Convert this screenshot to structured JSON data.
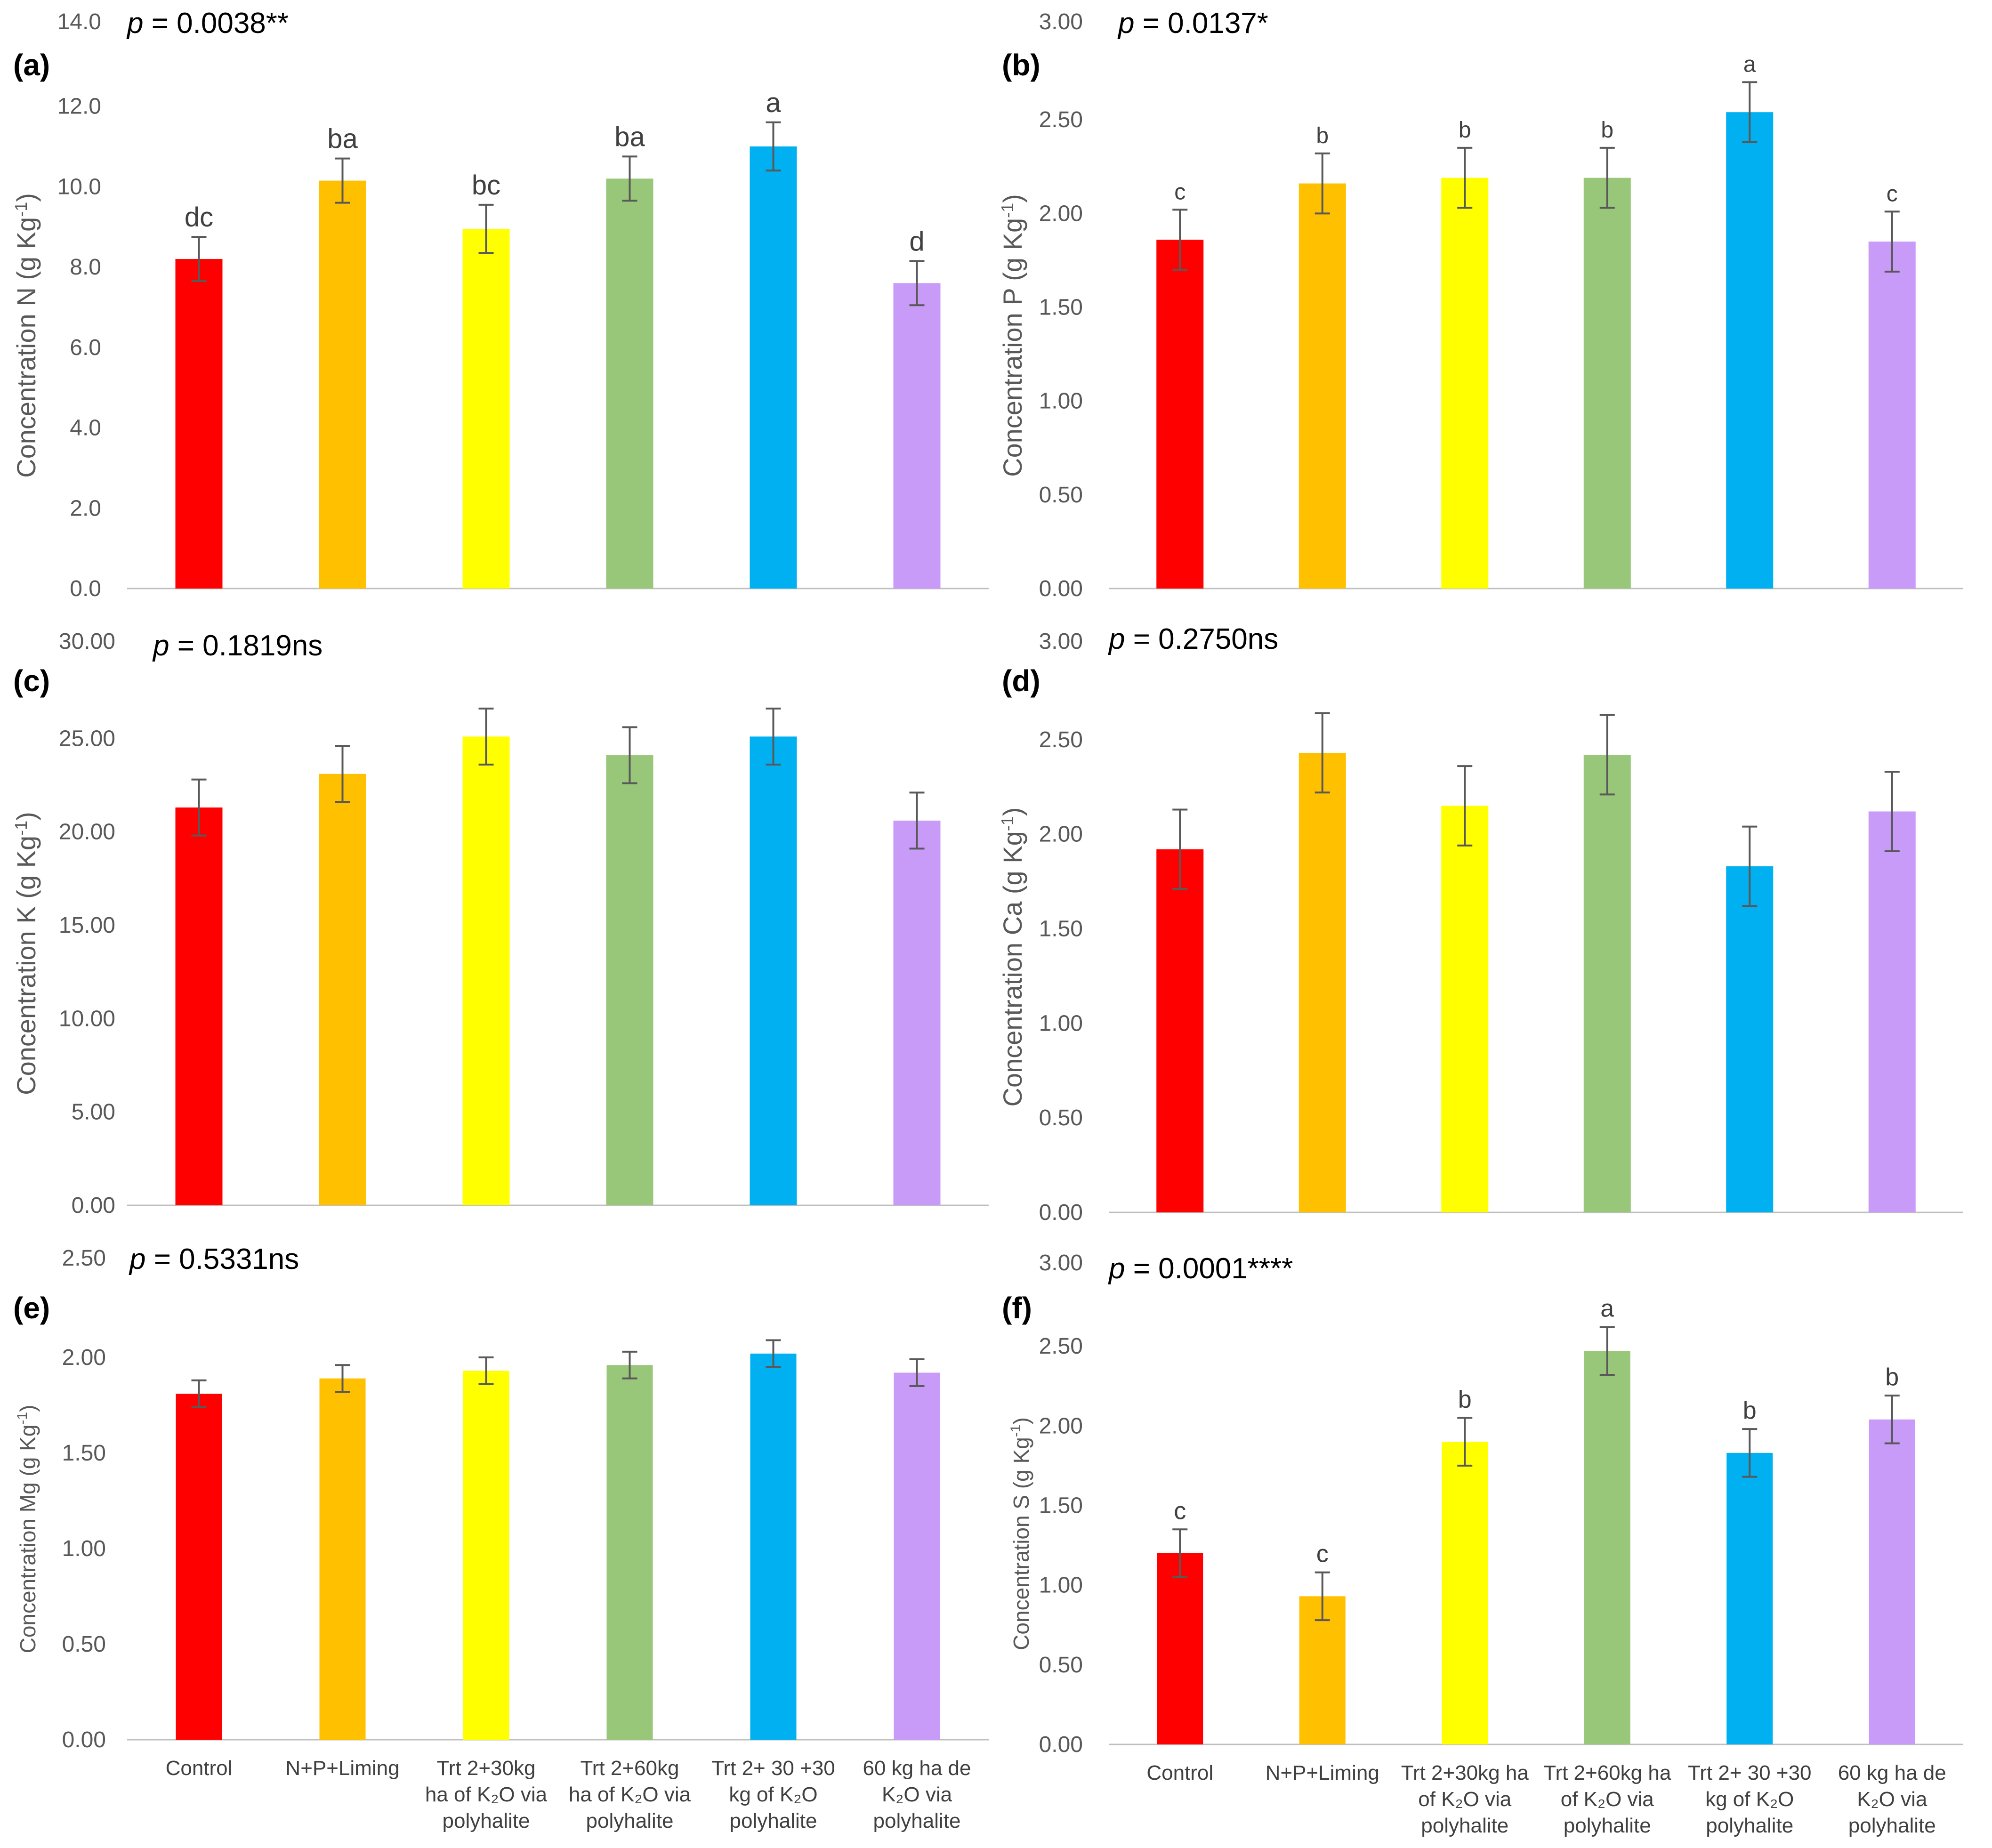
{
  "figure": {
    "colors": {
      "Control": "#ff0000",
      "N+P+Liming": "#ffc000",
      "Trt 2+30kg": "#ffff00",
      "Trt 2+60kg": "#98c77a",
      "Trt 2+ 30 +30": "#00b0f0",
      "60 kg": "#c89bf9"
    },
    "x_axis_labels_left": [
      [
        "Control"
      ],
      [
        "N+P+Liming"
      ],
      [
        "Trt 2+30kg",
        "ha of K₂O via",
        "polyhalite"
      ],
      [
        "Trt 2+60kg",
        "ha of K₂O via",
        "polyhalite"
      ],
      [
        "Trt 2+ 30 +30",
        "kg of K₂O",
        "polyhalite"
      ],
      [
        "60 kg ha de",
        "K₂O via",
        "polyhalite"
      ]
    ],
    "x_axis_labels_right": [
      [
        "Control"
      ],
      [
        "N+P+Liming"
      ],
      [
        "Trt 2+30kg ha",
        "of K₂O via",
        "polyhalite"
      ],
      [
        "Trt 2+60kg ha",
        "of K₂O via",
        "polyhalite"
      ],
      [
        "Trt 2+ 30 +30",
        "kg of K₂O",
        "polyhalite"
      ],
      [
        "60 kg ha de",
        "K₂O via",
        "polyhalite"
      ]
    ]
  },
  "chart_data": [
    {
      "panel": "(a)",
      "type": "bar",
      "p_prefix": "p",
      "p_value": " = 0.0038**",
      "ylabel_main": "Concentration N (g Kg",
      "ylabel_sup": "-1",
      "ylabel_end": ")",
      "ylim": [
        0,
        14
      ],
      "top_tick": "14.0",
      "ticks": [
        "0.0",
        "2.0",
        "4.0",
        "6.0",
        "8.0",
        "10.0",
        "12.0"
      ],
      "categories": [
        "Control",
        "N+P+Liming",
        "Trt 2+30kg ha of K₂O via polyhalite",
        "Trt 2+60kg ha of K₂O via polyhalite",
        "Trt 2+ 30 +30 kg of K₂O polyhalite",
        "60 kg ha de K₂O via polyhalite"
      ],
      "values": [
        8.2,
        10.15,
        8.95,
        10.2,
        11.0,
        7.6
      ],
      "errors": [
        0.55,
        0.55,
        0.6,
        0.55,
        0.6,
        0.55
      ],
      "letters": [
        "dc",
        "ba",
        "bc",
        "ba",
        "a",
        "d"
      ]
    },
    {
      "panel": "(b)",
      "type": "bar",
      "p_prefix": "p",
      "p_value": " = 0.0137*",
      "ylabel_main": "Concentration P (g Kg",
      "ylabel_sup": "-1",
      "ylabel_end": ")",
      "ylim": [
        0,
        3
      ],
      "top_tick": "3.00",
      "ticks": [
        "0.00",
        "0.50",
        "1.00",
        "1.50",
        "2.00",
        "2.50"
      ],
      "categories": [
        "Control",
        "N+P+Liming",
        "Trt 2+30kg ha of K₂O via polyhalite",
        "Trt 2+60kg ha of K₂O via polyhalite",
        "Trt 2+ 30 +30 kg of K₂O polyhalite",
        "60 kg ha de K₂O via polyhalite"
      ],
      "values": [
        1.86,
        2.16,
        2.19,
        2.19,
        2.54,
        1.85
      ],
      "errors": [
        0.16,
        0.16,
        0.16,
        0.16,
        0.16,
        0.16
      ],
      "letters": [
        "c",
        "b",
        "b",
        "b",
        "a",
        "c"
      ]
    },
    {
      "panel": "(c)",
      "type": "bar",
      "p_prefix": "p",
      "p_value": " = 0.1819ns",
      "ylabel_main": "Concentration K (g Kg",
      "ylabel_sup": "-1",
      "ylabel_end": ")",
      "ylim": [
        0,
        30
      ],
      "top_tick": "30.00",
      "ticks": [
        "0.00",
        "5.00",
        "10.00",
        "15.00",
        "20.00",
        "25.00"
      ],
      "categories": [
        "Control",
        "N+P+Liming",
        "Trt 2+30kg ha of K₂O via polyhalite",
        "Trt 2+60kg ha of K₂O via polyhalite",
        "Trt 2+ 30 +30 kg of K₂O polyhalite",
        "60 kg ha de K₂O via polyhalite"
      ],
      "values": [
        21.3,
        23.1,
        25.1,
        24.1,
        25.1,
        20.6
      ],
      "errors": [
        1.5,
        1.5,
        1.5,
        1.5,
        1.5,
        1.5
      ],
      "letters": []
    },
    {
      "panel": "(d)",
      "type": "bar",
      "p_prefix": "p",
      "p_value": " = 0.2750ns",
      "ylabel_main": "Concentration Ca (g Kg",
      "ylabel_sup": "-1",
      "ylabel_end": ")",
      "ylim": [
        0,
        3
      ],
      "top_tick": "3.00",
      "ticks": [
        "0.00",
        "0.50",
        "1.00",
        "1.50",
        "2.00",
        "2.50"
      ],
      "categories": [
        "Control",
        "N+P+Liming",
        "Trt 2+30kg ha of K₂O via polyhalite",
        "Trt 2+60kg ha of K₂O via polyhalite",
        "Trt 2+ 30 +30 kg of K₂O polyhalite",
        "60 kg ha de K₂O via polyhalite"
      ],
      "values": [
        1.92,
        2.43,
        2.15,
        2.42,
        1.83,
        2.12
      ],
      "errors": [
        0.21,
        0.21,
        0.21,
        0.21,
        0.21,
        0.21
      ],
      "letters": []
    },
    {
      "panel": "(e)",
      "type": "bar",
      "p_prefix": "p",
      "p_value": " = 0.5331ns",
      "ylabel_main": "Concentration Mg (g Kg",
      "ylabel_sup": "-1",
      "ylabel_end": ")",
      "ylim": [
        0,
        2.5
      ],
      "top_tick": "2.50",
      "ticks": [
        "0.00",
        "0.50",
        "1.00",
        "1.50",
        "2.00"
      ],
      "categories": [
        "Control",
        "N+P+Liming",
        "Trt 2+30kg ha of K₂O via polyhalite",
        "Trt 2+60kg ha of K₂O via polyhalite",
        "Trt 2+ 30 +30 kg of K₂O polyhalite",
        "60 kg ha de K₂O via polyhalite"
      ],
      "values": [
        1.81,
        1.89,
        1.93,
        1.96,
        2.02,
        1.92
      ],
      "errors": [
        0.07,
        0.07,
        0.07,
        0.07,
        0.07,
        0.07
      ],
      "letters": []
    },
    {
      "panel": "(f)",
      "type": "bar",
      "p_prefix": "p",
      "p_value": " = 0.0001****",
      "ylabel_main": "Concentration S (g Kg",
      "ylabel_sup": "-1",
      "ylabel_end": ")",
      "ylim": [
        0,
        3
      ],
      "top_tick": "3.00",
      "ticks": [
        "0.00",
        "0.50",
        "1.00",
        "1.50",
        "2.00",
        "2.50"
      ],
      "categories": [
        "Control",
        "N+P+Liming",
        "Trt 2+30kg ha of K₂O via polyhalite",
        "Trt 2+60kg ha of K₂O via polyhalite",
        "Trt 2+ 30 +30 kg of K₂O polyhalite",
        "60 kg ha de K₂O via polyhalite"
      ],
      "values": [
        1.2,
        0.93,
        1.9,
        2.47,
        1.83,
        2.04
      ],
      "errors": [
        0.15,
        0.15,
        0.15,
        0.15,
        0.15,
        0.15
      ],
      "letters": [
        "c",
        "c",
        "b",
        "a",
        "b",
        "b"
      ]
    }
  ]
}
